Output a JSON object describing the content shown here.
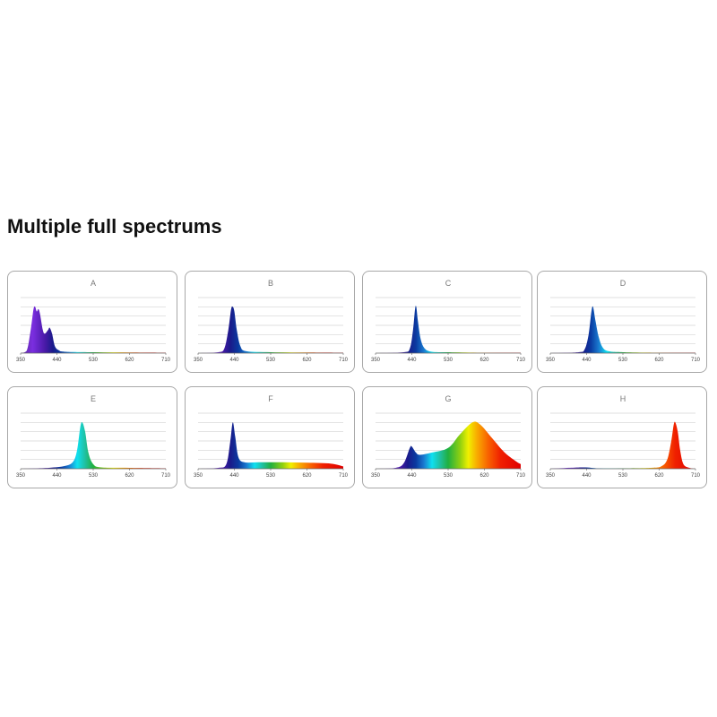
{
  "heading": "Multiple full spectrums",
  "chart_data": [
    {
      "type": "area",
      "title": "A",
      "xlim": [
        350,
        710
      ],
      "ylim": [
        0,
        1.2
      ],
      "xticks": [
        "350",
        "440",
        "530",
        "620",
        "710"
      ],
      "grid": true,
      "points": [
        [
          350,
          0
        ],
        [
          365,
          0.05
        ],
        [
          375,
          0.5
        ],
        [
          382,
          0.95
        ],
        [
          386,
          1.0
        ],
        [
          390,
          0.9
        ],
        [
          394,
          0.95
        ],
        [
          398,
          0.85
        ],
        [
          405,
          0.5
        ],
        [
          410,
          0.42
        ],
        [
          418,
          0.5
        ],
        [
          422,
          0.55
        ],
        [
          428,
          0.42
        ],
        [
          435,
          0.15
        ],
        [
          445,
          0.06
        ],
        [
          460,
          0.03
        ],
        [
          530,
          0.02
        ],
        [
          620,
          0.015
        ],
        [
          710,
          0.01
        ]
      ]
    },
    {
      "type": "area",
      "title": "B",
      "xlim": [
        350,
        710
      ],
      "ylim": [
        0,
        1.2
      ],
      "xticks": [
        "350",
        "440",
        "530",
        "620",
        "710"
      ],
      "grid": true,
      "points": [
        [
          350,
          0
        ],
        [
          400,
          0.02
        ],
        [
          415,
          0.1
        ],
        [
          425,
          0.5
        ],
        [
          432,
          0.95
        ],
        [
          436,
          1.0
        ],
        [
          440,
          0.9
        ],
        [
          446,
          0.5
        ],
        [
          455,
          0.15
        ],
        [
          470,
          0.04
        ],
        [
          530,
          0.02
        ],
        [
          620,
          0.015
        ],
        [
          710,
          0.01
        ]
      ]
    },
    {
      "type": "area",
      "title": "C",
      "xlim": [
        350,
        710
      ],
      "ylim": [
        0,
        1.2
      ],
      "xticks": [
        "350",
        "440",
        "530",
        "620",
        "710"
      ],
      "grid": true,
      "points": [
        [
          350,
          0
        ],
        [
          420,
          0.02
        ],
        [
          435,
          0.1
        ],
        [
          443,
          0.5
        ],
        [
          448,
          0.95
        ],
        [
          451,
          1.0
        ],
        [
          455,
          0.7
        ],
        [
          462,
          0.3
        ],
        [
          472,
          0.1
        ],
        [
          490,
          0.03
        ],
        [
          530,
          0.02
        ],
        [
          620,
          0.01
        ],
        [
          710,
          0.01
        ]
      ]
    },
    {
      "type": "area",
      "title": "D",
      "xlim": [
        350,
        710
      ],
      "ylim": [
        0,
        1.2
      ],
      "xticks": [
        "350",
        "440",
        "530",
        "620",
        "710"
      ],
      "grid": true,
      "points": [
        [
          350,
          0
        ],
        [
          420,
          0.02
        ],
        [
          435,
          0.08
        ],
        [
          445,
          0.4
        ],
        [
          452,
          0.9
        ],
        [
          456,
          1.0
        ],
        [
          462,
          0.7
        ],
        [
          470,
          0.35
        ],
        [
          480,
          0.12
        ],
        [
          495,
          0.04
        ],
        [
          530,
          0.02
        ],
        [
          620,
          0.01
        ],
        [
          710,
          0.01
        ]
      ]
    },
    {
      "type": "area",
      "title": "E",
      "xlim": [
        350,
        710
      ],
      "ylim": [
        0,
        1.2
      ],
      "xticks": [
        "350",
        "440",
        "530",
        "620",
        "710"
      ],
      "grid": true,
      "points": [
        [
          350,
          0
        ],
        [
          420,
          0.02
        ],
        [
          460,
          0.06
        ],
        [
          480,
          0.15
        ],
        [
          490,
          0.4
        ],
        [
          498,
          0.9
        ],
        [
          503,
          1.0
        ],
        [
          510,
          0.8
        ],
        [
          518,
          0.35
        ],
        [
          530,
          0.1
        ],
        [
          550,
          0.03
        ],
        [
          620,
          0.02
        ],
        [
          710,
          0.01
        ]
      ]
    },
    {
      "type": "area",
      "title": "F",
      "xlim": [
        350,
        710
      ],
      "ylim": [
        0,
        1.2
      ],
      "xticks": [
        "350",
        "440",
        "530",
        "620",
        "710"
      ],
      "grid": true,
      "points": [
        [
          350,
          0
        ],
        [
          400,
          0.02
        ],
        [
          420,
          0.1
        ],
        [
          430,
          0.6
        ],
        [
          436,
          1.0
        ],
        [
          442,
          0.7
        ],
        [
          450,
          0.25
        ],
        [
          465,
          0.14
        ],
        [
          500,
          0.14
        ],
        [
          560,
          0.14
        ],
        [
          620,
          0.13
        ],
        [
          680,
          0.11
        ],
        [
          710,
          0.05
        ]
      ]
    },
    {
      "type": "area",
      "title": "G",
      "xlim": [
        350,
        710
      ],
      "ylim": [
        0,
        1.2
      ],
      "xticks": [
        "350",
        "440",
        "530",
        "620",
        "710"
      ],
      "grid": true,
      "points": [
        [
          350,
          0
        ],
        [
          400,
          0.02
        ],
        [
          420,
          0.12
        ],
        [
          435,
          0.45
        ],
        [
          440,
          0.48
        ],
        [
          450,
          0.35
        ],
        [
          460,
          0.3
        ],
        [
          490,
          0.35
        ],
        [
          530,
          0.45
        ],
        [
          560,
          0.75
        ],
        [
          590,
          1.0
        ],
        [
          610,
          0.95
        ],
        [
          640,
          0.65
        ],
        [
          670,
          0.35
        ],
        [
          700,
          0.15
        ],
        [
          710,
          0.1
        ]
      ]
    },
    {
      "type": "area",
      "title": "H",
      "xlim": [
        350,
        710
      ],
      "ylim": [
        0,
        1.2
      ],
      "xticks": [
        "350",
        "440",
        "530",
        "620",
        "710"
      ],
      "grid": true,
      "points": [
        [
          350,
          0
        ],
        [
          430,
          0.03
        ],
        [
          470,
          0.01
        ],
        [
          530,
          0.01
        ],
        [
          600,
          0.02
        ],
        [
          625,
          0.05
        ],
        [
          640,
          0.2
        ],
        [
          650,
          0.6
        ],
        [
          656,
          0.95
        ],
        [
          660,
          1.0
        ],
        [
          666,
          0.8
        ],
        [
          672,
          0.4
        ],
        [
          680,
          0.1
        ],
        [
          695,
          0.02
        ],
        [
          710,
          0
        ]
      ]
    }
  ],
  "spectrum_colors": [
    [
      350,
      "#5a2a9a"
    ],
    [
      380,
      "#7b2ee0"
    ],
    [
      410,
      "#4a1aa8"
    ],
    [
      430,
      "#1a1a8a"
    ],
    [
      450,
      "#0a3aa0"
    ],
    [
      470,
      "#1a7ad0"
    ],
    [
      490,
      "#10e0f0"
    ],
    [
      510,
      "#20c0a0"
    ],
    [
      530,
      "#20b040"
    ],
    [
      560,
      "#90d010"
    ],
    [
      580,
      "#f0f000"
    ],
    [
      600,
      "#f8b000"
    ],
    [
      630,
      "#f86000"
    ],
    [
      660,
      "#f02000"
    ],
    [
      710,
      "#e00000"
    ]
  ]
}
